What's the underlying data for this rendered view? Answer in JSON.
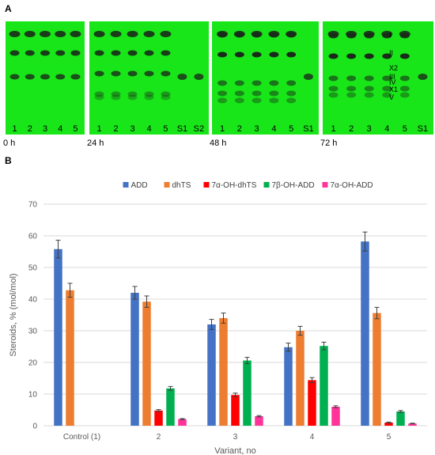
{
  "panel_a_label": "A",
  "panel_b_label": "B",
  "tlc": {
    "plates": [
      {
        "time": "0 h",
        "lanes": [
          "1",
          "2",
          "3",
          "4",
          "5"
        ],
        "markers": []
      },
      {
        "time": "24 h",
        "lanes": [
          "1",
          "2",
          "3",
          "4",
          "5",
          "S1",
          "S2"
        ],
        "markers": []
      },
      {
        "time": "48 h",
        "lanes": [
          "1",
          "2",
          "3",
          "4",
          "5",
          "S1"
        ],
        "markers": []
      },
      {
        "time": "72 h",
        "lanes": [
          "1",
          "2",
          "3",
          "4",
          "5",
          "S1"
        ],
        "markers": [
          "I",
          "II",
          "X2",
          "III",
          "IV",
          "X1",
          "V"
        ]
      }
    ],
    "colors": {
      "plate": "#19e619",
      "spot": "#1a2a1a"
    }
  },
  "chart_data": {
    "type": "bar",
    "title": "",
    "xlabel": "Variant, no",
    "ylabel": "Steroids, % (mol/mol)",
    "ylim": [
      0,
      70
    ],
    "yticks": [
      0,
      10,
      20,
      30,
      40,
      50,
      60,
      70
    ],
    "grid": true,
    "legend_position": "top",
    "categories": [
      "Control (1)",
      "2",
      "3",
      "4",
      "5"
    ],
    "series": [
      {
        "name": "ADD",
        "color": "#4472c4",
        "values": [
          55.8,
          42.0,
          32.0,
          24.8,
          58.2
        ],
        "errors": [
          2.8,
          2.0,
          1.6,
          1.3,
          3.0
        ]
      },
      {
        "name": "dhTS",
        "color": "#ed7d31",
        "values": [
          42.8,
          39.2,
          34.0,
          30.0,
          35.6
        ],
        "errors": [
          2.2,
          1.8,
          1.6,
          1.4,
          1.8
        ]
      },
      {
        "name": "7α-OH-dhTS",
        "color": "#ff0000",
        "values": [
          0,
          4.8,
          9.7,
          14.4,
          1.0
        ],
        "errors": [
          0,
          0.3,
          0.6,
          0.8,
          0.15
        ]
      },
      {
        "name": "7β-OH-ADD",
        "color": "#00b050",
        "values": [
          0,
          11.8,
          20.6,
          25.2,
          4.5
        ],
        "errors": [
          0,
          0.6,
          1.0,
          1.2,
          0.3
        ]
      },
      {
        "name": "7α-OH-ADD",
        "color": "#ff3399",
        "values": [
          0,
          2.1,
          3.0,
          6.0,
          0.7
        ],
        "errors": [
          0,
          0.15,
          0.2,
          0.3,
          0.1
        ]
      }
    ]
  }
}
